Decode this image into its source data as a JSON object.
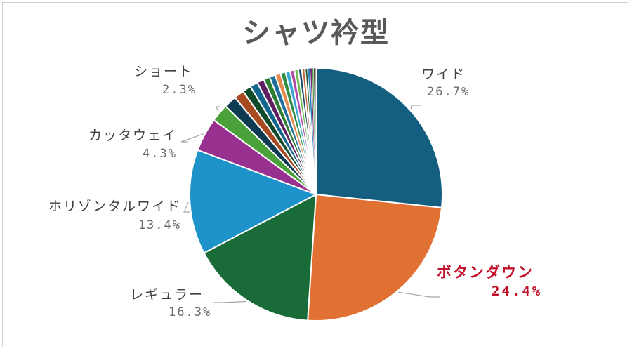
{
  "chart_data": {
    "type": "pie",
    "title": "シャツ衿型",
    "slices": [
      {
        "label": "ワイド",
        "value": 26.7,
        "pct_text": "26.7%",
        "color": "#145f80",
        "show_label": true
      },
      {
        "label": "ボタンダウン",
        "value": 24.4,
        "pct_text": "24.4%",
        "color": "#e07133",
        "show_label": true,
        "highlight": true
      },
      {
        "label": "レギュラー",
        "value": 16.3,
        "pct_text": "16.3%",
        "color": "#196b38",
        "show_label": true
      },
      {
        "label": "ホリゾンタルワイド",
        "value": 13.4,
        "pct_text": "13.4%",
        "color": "#1d93c9",
        "show_label": true
      },
      {
        "label": "カッタウェイ",
        "value": 4.3,
        "pct_text": "4.3%",
        "color": "#97308f",
        "show_label": true
      },
      {
        "label": "ショート",
        "value": 2.3,
        "pct_text": "2.3%",
        "color": "#4aa139",
        "show_label": true
      },
      {
        "value": 1.6,
        "color": "#0f3b52"
      },
      {
        "value": 1.3,
        "color": "#a84a22"
      },
      {
        "value": 1.1,
        "color": "#0f4a2a"
      },
      {
        "value": 1.0,
        "color": "#12658c"
      },
      {
        "value": 0.9,
        "color": "#5e2060"
      },
      {
        "value": 0.8,
        "color": "#2e7d32"
      },
      {
        "value": 0.75,
        "color": "#1f6f9a"
      },
      {
        "value": 0.7,
        "color": "#e58a4f"
      },
      {
        "value": 0.65,
        "color": "#2f8f45"
      },
      {
        "value": 0.6,
        "color": "#3aa7d8"
      },
      {
        "value": 0.55,
        "color": "#b04ca8"
      },
      {
        "value": 0.5,
        "color": "#6fbf55"
      },
      {
        "value": 0.45,
        "color": "#1a4d66"
      },
      {
        "value": 0.4,
        "color": "#c0653a"
      },
      {
        "value": 0.35,
        "color": "#1c5a36"
      },
      {
        "value": 0.3,
        "color": "#2b84b8"
      },
      {
        "value": 0.25,
        "color": "#7a2a78"
      },
      {
        "value": 0.2,
        "color": "#4f9a3f"
      },
      {
        "value": 0.15,
        "color": "#3a3a3a"
      },
      {
        "value": 0.15,
        "color": "#888888"
      }
    ]
  }
}
